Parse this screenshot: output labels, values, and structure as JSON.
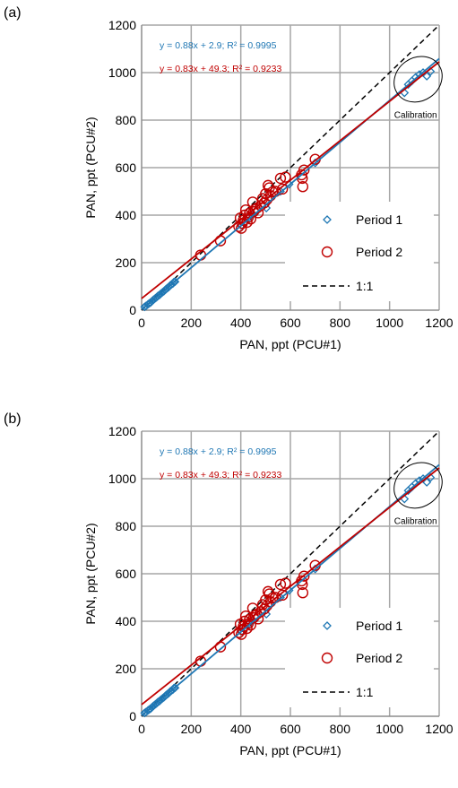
{
  "chart_data": [
    {
      "panel_label": "(a)",
      "type": "scatter",
      "xlabel": "PAN, ppt (PCU#1)",
      "ylabel": "PAN, ppt (PCU#2)",
      "xlim": [
        0,
        1200
      ],
      "ylim": [
        0,
        1200
      ],
      "xticks": [
        0,
        200,
        400,
        600,
        800,
        1000,
        1200
      ],
      "yticks": [
        0,
        200,
        400,
        600,
        800,
        1000,
        1200
      ],
      "grid": true,
      "legend_position": "lower-right",
      "annotation": "Calibration",
      "equations": [
        {
          "text": "y = 0.88x + 2.9; R² = 0.9995",
          "color": "#1f77b4"
        },
        {
          "text": "y = 0.83x + 49.3;  R² =  0.9233",
          "color": "#c00000"
        }
      ],
      "legend": [
        "Period 1",
        "Period 2",
        "1:1"
      ],
      "series": [
        {
          "name": "Period 1",
          "marker": "diamond",
          "color": "#1f77b4",
          "fit": {
            "slope": 0.88,
            "intercept": 2.9
          },
          "points": [
            [
              12,
              14
            ],
            [
              18,
              18
            ],
            [
              25,
              24
            ],
            [
              30,
              28
            ],
            [
              36,
              32
            ],
            [
              42,
              38
            ],
            [
              48,
              44
            ],
            [
              55,
              50
            ],
            [
              60,
              54
            ],
            [
              66,
              60
            ],
            [
              72,
              64
            ],
            [
              78,
              70
            ],
            [
              85,
              76
            ],
            [
              90,
              80
            ],
            [
              96,
              86
            ],
            [
              100,
              90
            ],
            [
              105,
              94
            ],
            [
              110,
              98
            ],
            [
              115,
              104
            ],
            [
              120,
              108
            ],
            [
              126,
              112
            ],
            [
              130,
              118
            ],
            [
              135,
              120
            ],
            [
              404,
              358
            ],
            [
              430,
              386
            ],
            [
              450,
              404
            ],
            [
              503,
              430
            ],
            [
              520,
              470
            ],
            [
              560,
              500
            ],
            [
              595,
              530
            ],
            [
              700,
              620
            ],
            [
              1060,
              915
            ],
            [
              1075,
              950
            ],
            [
              1090,
              965
            ],
            [
              1105,
              980
            ],
            [
              1120,
              992
            ],
            [
              1135,
              1000
            ],
            [
              1150,
              985
            ],
            [
              1165,
              1005
            ]
          ]
        },
        {
          "name": "Period 2",
          "marker": "circle",
          "color": "#c00000",
          "fit": {
            "slope": 0.83,
            "intercept": 49.3
          },
          "points": [
            [
              238,
              232
            ],
            [
              318,
              292
            ],
            [
              392,
              352
            ],
            [
              398,
              388
            ],
            [
              402,
              345
            ],
            [
              406,
              365
            ],
            [
              410,
              378
            ],
            [
              415,
              400
            ],
            [
              420,
              422
            ],
            [
              425,
              370
            ],
            [
              430,
              390
            ],
            [
              435,
              408
            ],
            [
              440,
              384
            ],
            [
              448,
              455
            ],
            [
              452,
              415
            ],
            [
              458,
              425
            ],
            [
              465,
              430
            ],
            [
              470,
              410
            ],
            [
              480,
              440
            ],
            [
              488,
              470
            ],
            [
              495,
              452
            ],
            [
              500,
              490
            ],
            [
              505,
              465
            ],
            [
              510,
              525
            ],
            [
              515,
              515
            ],
            [
              520,
              482
            ],
            [
              528,
              498
            ],
            [
              540,
              500
            ],
            [
              560,
              555
            ],
            [
              568,
              510
            ],
            [
              580,
              560
            ],
            [
              645,
              570
            ],
            [
              648,
              555
            ],
            [
              650,
              520
            ],
            [
              655,
              590
            ],
            [
              700,
              635
            ]
          ]
        }
      ]
    },
    {
      "panel_label": "(b)",
      "type": "scatter",
      "xlabel": "PAN, ppt (PCU#1)",
      "ylabel": "PAN, ppt (PCU#2)",
      "xlim": [
        0,
        1200
      ],
      "ylim": [
        0,
        1200
      ],
      "xticks": [
        0,
        200,
        400,
        600,
        800,
        1000,
        1200
      ],
      "yticks": [
        0,
        200,
        400,
        600,
        800,
        1000,
        1200
      ],
      "grid": true,
      "legend_position": "lower-right",
      "annotation": "Calibration",
      "equations": [
        {
          "text": "y = 0.88x + 2.9; R² = 0.9995",
          "color": "#1f77b4"
        },
        {
          "text": "y = 0.83x + 49.3;  R² =  0.9233",
          "color": "#c00000"
        }
      ],
      "legend": [
        "Period 1",
        "Period 2",
        "1:1"
      ],
      "series": [
        {
          "name": "Period 1",
          "marker": "diamond",
          "color": "#1f77b4",
          "fit": {
            "slope": 0.88,
            "intercept": 2.9
          },
          "points": [
            [
              12,
              14
            ],
            [
              18,
              18
            ],
            [
              25,
              24
            ],
            [
              30,
              28
            ],
            [
              36,
              32
            ],
            [
              42,
              38
            ],
            [
              48,
              44
            ],
            [
              55,
              50
            ],
            [
              60,
              54
            ],
            [
              66,
              60
            ],
            [
              72,
              64
            ],
            [
              78,
              70
            ],
            [
              85,
              76
            ],
            [
              90,
              80
            ],
            [
              96,
              86
            ],
            [
              100,
              90
            ],
            [
              105,
              94
            ],
            [
              110,
              98
            ],
            [
              115,
              104
            ],
            [
              120,
              108
            ],
            [
              126,
              112
            ],
            [
              130,
              118
            ],
            [
              135,
              120
            ],
            [
              404,
              358
            ],
            [
              430,
              386
            ],
            [
              450,
              404
            ],
            [
              503,
              430
            ],
            [
              520,
              470
            ],
            [
              560,
              500
            ],
            [
              595,
              530
            ],
            [
              700,
              620
            ],
            [
              1060,
              915
            ],
            [
              1075,
              950
            ],
            [
              1090,
              965
            ],
            [
              1105,
              980
            ],
            [
              1120,
              992
            ],
            [
              1135,
              1000
            ],
            [
              1150,
              985
            ],
            [
              1165,
              1005
            ]
          ]
        },
        {
          "name": "Period 2",
          "marker": "circle",
          "color": "#c00000",
          "fit": {
            "slope": 0.83,
            "intercept": 49.3
          },
          "points": [
            [
              238,
              232
            ],
            [
              318,
              292
            ],
            [
              392,
              352
            ],
            [
              398,
              388
            ],
            [
              402,
              345
            ],
            [
              406,
              365
            ],
            [
              410,
              378
            ],
            [
              415,
              400
            ],
            [
              420,
              422
            ],
            [
              425,
              370
            ],
            [
              430,
              390
            ],
            [
              435,
              408
            ],
            [
              440,
              384
            ],
            [
              448,
              455
            ],
            [
              452,
              415
            ],
            [
              458,
              425
            ],
            [
              465,
              430
            ],
            [
              470,
              410
            ],
            [
              480,
              440
            ],
            [
              488,
              470
            ],
            [
              495,
              452
            ],
            [
              500,
              490
            ],
            [
              505,
              465
            ],
            [
              510,
              525
            ],
            [
              515,
              515
            ],
            [
              520,
              482
            ],
            [
              528,
              498
            ],
            [
              540,
              500
            ],
            [
              560,
              555
            ],
            [
              568,
              510
            ],
            [
              580,
              560
            ],
            [
              645,
              570
            ],
            [
              648,
              555
            ],
            [
              650,
              520
            ],
            [
              655,
              590
            ],
            [
              700,
              635
            ]
          ]
        }
      ]
    }
  ]
}
